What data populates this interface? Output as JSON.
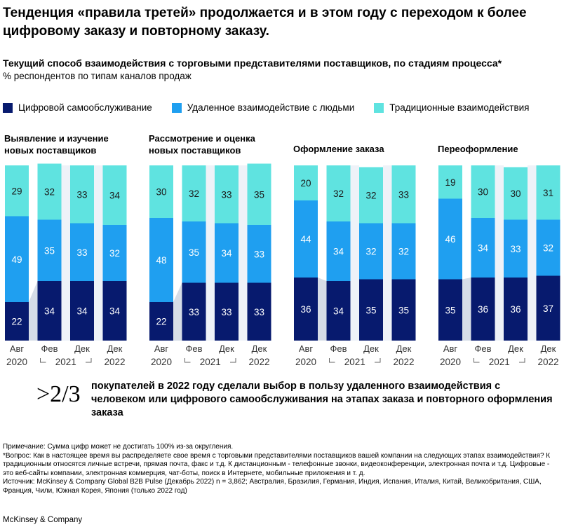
{
  "header": {
    "title": "Тенденция «правила третей» продолжается и в этом году с переходом к более цифровому заказу и повторному заказу.",
    "subtitle": "Текущий способ взаимодействия с торговыми представителями поставщиков, по стадиям процесса*",
    "subnote": "% респондентов по типам каналов продаж"
  },
  "legend": [
    {
      "label": "Цифровой самообслуживание",
      "color": "#071a6e"
    },
    {
      "label": "Удаленное взаимодействие с людьми",
      "color": "#1f9ff0"
    },
    {
      "label": "Традиционные взаимодействия",
      "color": "#5fe3e0"
    }
  ],
  "colors": {
    "connector": "#b5c1d3"
  },
  "chart_data": {
    "type": "bar",
    "stacked": true,
    "categories": [
      "Авг",
      "Фев",
      "Дек",
      "Дек"
    ],
    "years": [
      "2020",
      "2021",
      "2022"
    ],
    "ylim": [
      0,
      100
    ],
    "panels": [
      {
        "title": "Выявление и изучение новых поставщиков",
        "series": [
          {
            "name": "Цифровой самообслуживание",
            "values": [
              22,
              34,
              34,
              34
            ]
          },
          {
            "name": "Удаленное взаимодействие с людьми",
            "values": [
              49,
              35,
              33,
              32
            ]
          },
          {
            "name": "Традиционные взаимодействия",
            "values": [
              29,
              32,
              33,
              34
            ]
          }
        ]
      },
      {
        "title": "Рассмотрение и оценка новых поставщиков",
        "series": [
          {
            "name": "Цифровой самообслуживание",
            "values": [
              22,
              33,
              33,
              33
            ]
          },
          {
            "name": "Удаленное взаимодействие с людьми",
            "values": [
              48,
              35,
              34,
              33
            ]
          },
          {
            "name": "Традиционные взаимодействия",
            "values": [
              30,
              32,
              33,
              35
            ]
          }
        ]
      },
      {
        "title": "Оформление заказа",
        "series": [
          {
            "name": "Цифровой самообслуживание",
            "values": [
              36,
              34,
              35,
              35
            ]
          },
          {
            "name": "Удаленное взаимодействие с людьми",
            "values": [
              44,
              34,
              32,
              32
            ]
          },
          {
            "name": "Традиционные взаимодействия",
            "values": [
              20,
              32,
              32,
              33
            ]
          }
        ]
      },
      {
        "title": "Переоформление",
        "series": [
          {
            "name": "Цифровой самообслуживание",
            "values": [
              35,
              36,
              36,
              37
            ]
          },
          {
            "name": "Удаленное взаимодействие с людьми",
            "values": [
              46,
              34,
              33,
              32
            ]
          },
          {
            "name": "Традиционные взаимодействия",
            "values": [
              19,
              30,
              30,
              31
            ]
          }
        ]
      }
    ]
  },
  "stat": {
    "big": ">2/3",
    "text": "покупателей в 2022 году сделали выбор в пользу удаленного взаимодействия с человеком или цифрового самообслуживания на этапах заказа и повторного оформления заказа"
  },
  "notes": [
    "Примечание: Сумма цифр может не достигать 100% из-за округления.",
    "*Вопрос: Как в настоящее время вы распределяете свое время с торговыми представителями поставщиков вашей компании на следующих этапах взаимодействия? К традиционным относятся личные встречи, прямая почта, факс и т.д. К дистанционным - телефонные звонки, видеоконференции, электронная почта и т.д. Цифровые - это веб-сайты компании, электронная коммерция, чат-боты, поиск в Интернете, мобильные приложения и т. д.",
    "Источник: McKinsey & Company Global B2B Pulse (Декабрь 2022) n = 3,862; Австралия, Бразилия, Германия, Индия, Испания, Италия, Китай, Великобритания, США, Франция, Чили, Южная Корея, Япония (только 2022 год)"
  ],
  "brand": "McKinsey & Company"
}
